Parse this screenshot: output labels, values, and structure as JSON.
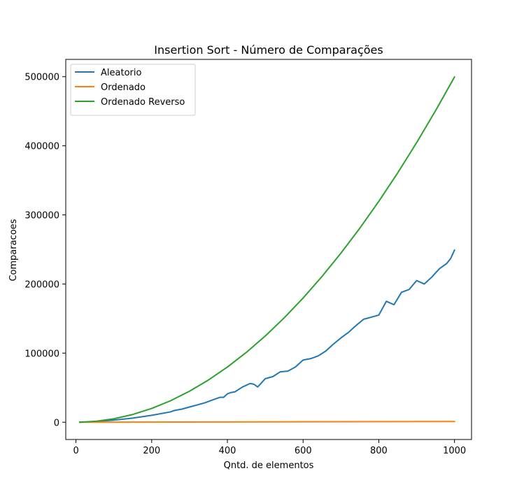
{
  "chart_data": {
    "type": "line",
    "title": "Insertion Sort - Número de Comparações",
    "xlabel": "Qntd. de elementos",
    "ylabel": "Comparacoes",
    "xlim": [
      -27,
      1045
    ],
    "ylim": [
      -25000,
      525000
    ],
    "xticks": [
      0,
      200,
      400,
      600,
      800,
      1000
    ],
    "yticks": [
      0,
      100000,
      200000,
      300000,
      400000,
      500000
    ],
    "grid": false,
    "legend_position": "top-left",
    "series": [
      {
        "name": "Aleatorio",
        "color": "#1f77b4",
        "x": [
          10,
          50,
          100,
          150,
          200,
          250,
          260,
          280,
          300,
          320,
          340,
          360,
          380,
          390,
          400,
          410,
          420,
          440,
          460,
          470,
          480,
          490,
          500,
          520,
          540,
          560,
          580,
          600,
          620,
          640,
          660,
          680,
          700,
          720,
          740,
          760,
          780,
          800,
          820,
          840,
          860,
          880,
          900,
          920,
          940,
          960,
          980,
          990,
          1000
        ],
        "y": [
          0,
          1000,
          3000,
          6000,
          10000,
          15000,
          17000,
          19000,
          22000,
          25000,
          28000,
          32000,
          36000,
          36000,
          41000,
          43000,
          44000,
          51000,
          56000,
          55000,
          51000,
          57000,
          63000,
          66000,
          73000,
          74000,
          80000,
          90000,
          92000,
          96000,
          103000,
          113000,
          122000,
          130000,
          140000,
          149000,
          152000,
          155000,
          175000,
          170000,
          188000,
          192000,
          205000,
          200000,
          210000,
          222000,
          230000,
          237000,
          249000
        ]
      },
      {
        "name": "Ordenado",
        "color": "#ff7f0e",
        "x": [
          10,
          1000
        ],
        "y": [
          9,
          999
        ]
      },
      {
        "name": "Ordenado Reverso",
        "color": "#2ca02c",
        "x": [
          10,
          50,
          100,
          150,
          200,
          250,
          300,
          350,
          400,
          450,
          500,
          550,
          600,
          650,
          700,
          750,
          800,
          850,
          900,
          950,
          1000
        ],
        "y": [
          45,
          1225,
          4950,
          11175,
          19900,
          31125,
          44850,
          61075,
          79800,
          101025,
          124750,
          150975,
          179700,
          210925,
          244650,
          280875,
          319600,
          360825,
          404550,
          450775,
          499500
        ]
      }
    ]
  }
}
